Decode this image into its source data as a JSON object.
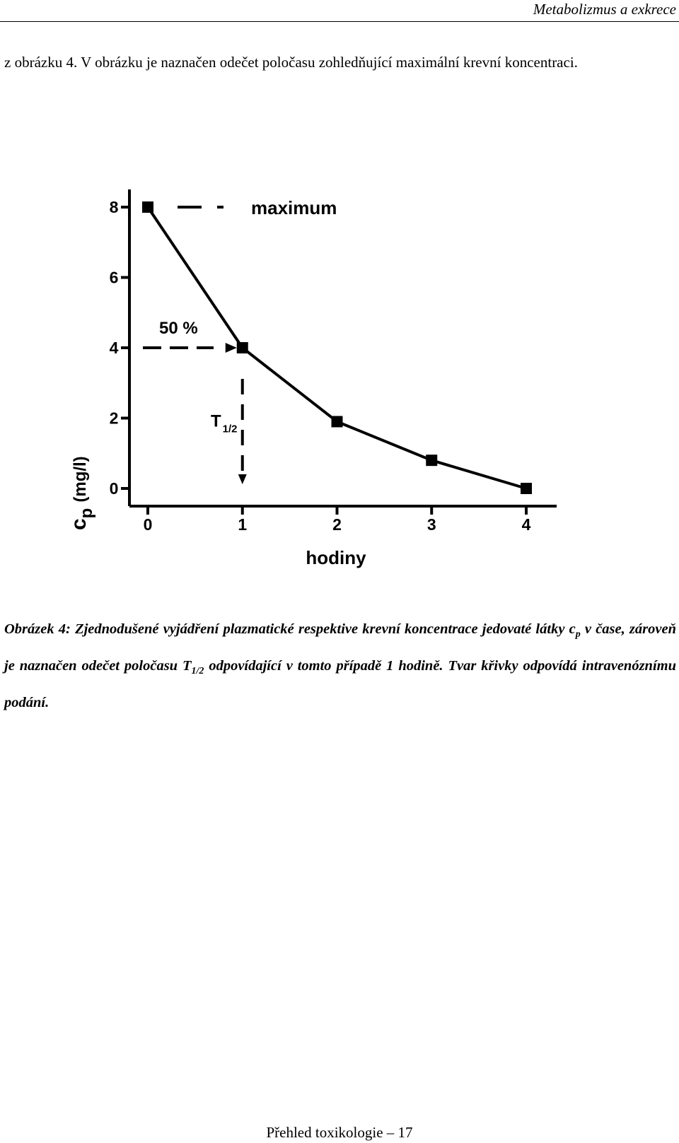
{
  "header": {
    "running_title": "Metabolizmus a exkrece"
  },
  "intro": {
    "text": "z obrázku 4. V obrázku je naznačen odečet poločasu zohledňující maximální krevní koncentraci."
  },
  "chart_data": {
    "type": "line",
    "x": [
      0,
      1,
      2,
      3,
      4
    ],
    "values": [
      8,
      4,
      1.9,
      0.8,
      0
    ],
    "xlabel": "hodiny",
    "ylabel_main": "c",
    "ylabel_sub": "p",
    "ylabel_unit": "(mg/l)",
    "xlim": [
      0,
      4
    ],
    "ylim": [
      0,
      8
    ],
    "x_ticks": [
      "0",
      "1",
      "2",
      "3",
      "4"
    ],
    "y_ticks": [
      "0",
      "2",
      "4",
      "6",
      "8"
    ],
    "grid": false,
    "annotations": {
      "maximum": "maximum",
      "percent": "50 %",
      "half_life_main": "T",
      "half_life_sub": "1/2"
    },
    "marker": "square",
    "color": "#000000"
  },
  "caption": {
    "lead": "Obrázek 4: Zjednodušené vyjádření plazmatické respektive krevní koncentrace jedovaté látky c",
    "sub1": "p",
    "mid": " v čase, zároveň je naznačen odečet poločasu T",
    "sub2": "1/2",
    "tail": " odpovídající v tomto případě 1 hodině. Tvar křivky odpovídá intravenóznímu podání."
  },
  "footer": {
    "page_label": "Přehled toxikologie – 17"
  }
}
